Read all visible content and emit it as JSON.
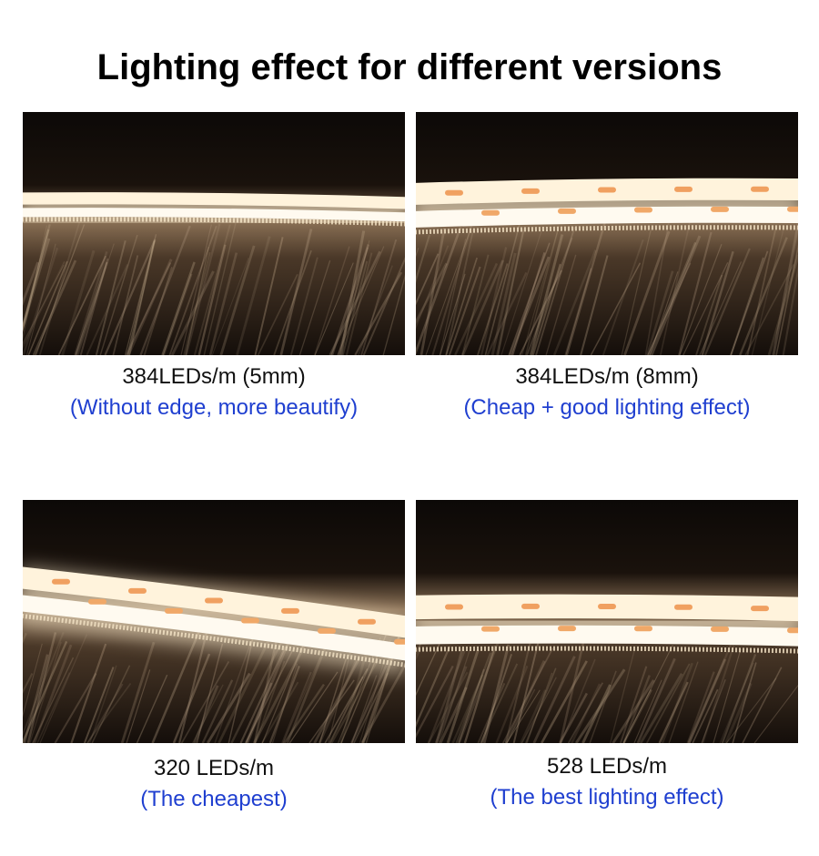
{
  "title": "Lighting effect for different versions",
  "panels": [
    {
      "label": "384LEDs/m (5mm)",
      "note": "(Without edge, more beautify)"
    },
    {
      "label": "384LEDs/m (8mm)",
      "note": "(Cheap + good lighting effect)"
    },
    {
      "label": "320 LEDs/m",
      "note": "(The cheapest)"
    },
    {
      "label": "528 LEDs/m",
      "note": "(The best lighting effect)"
    }
  ]
}
